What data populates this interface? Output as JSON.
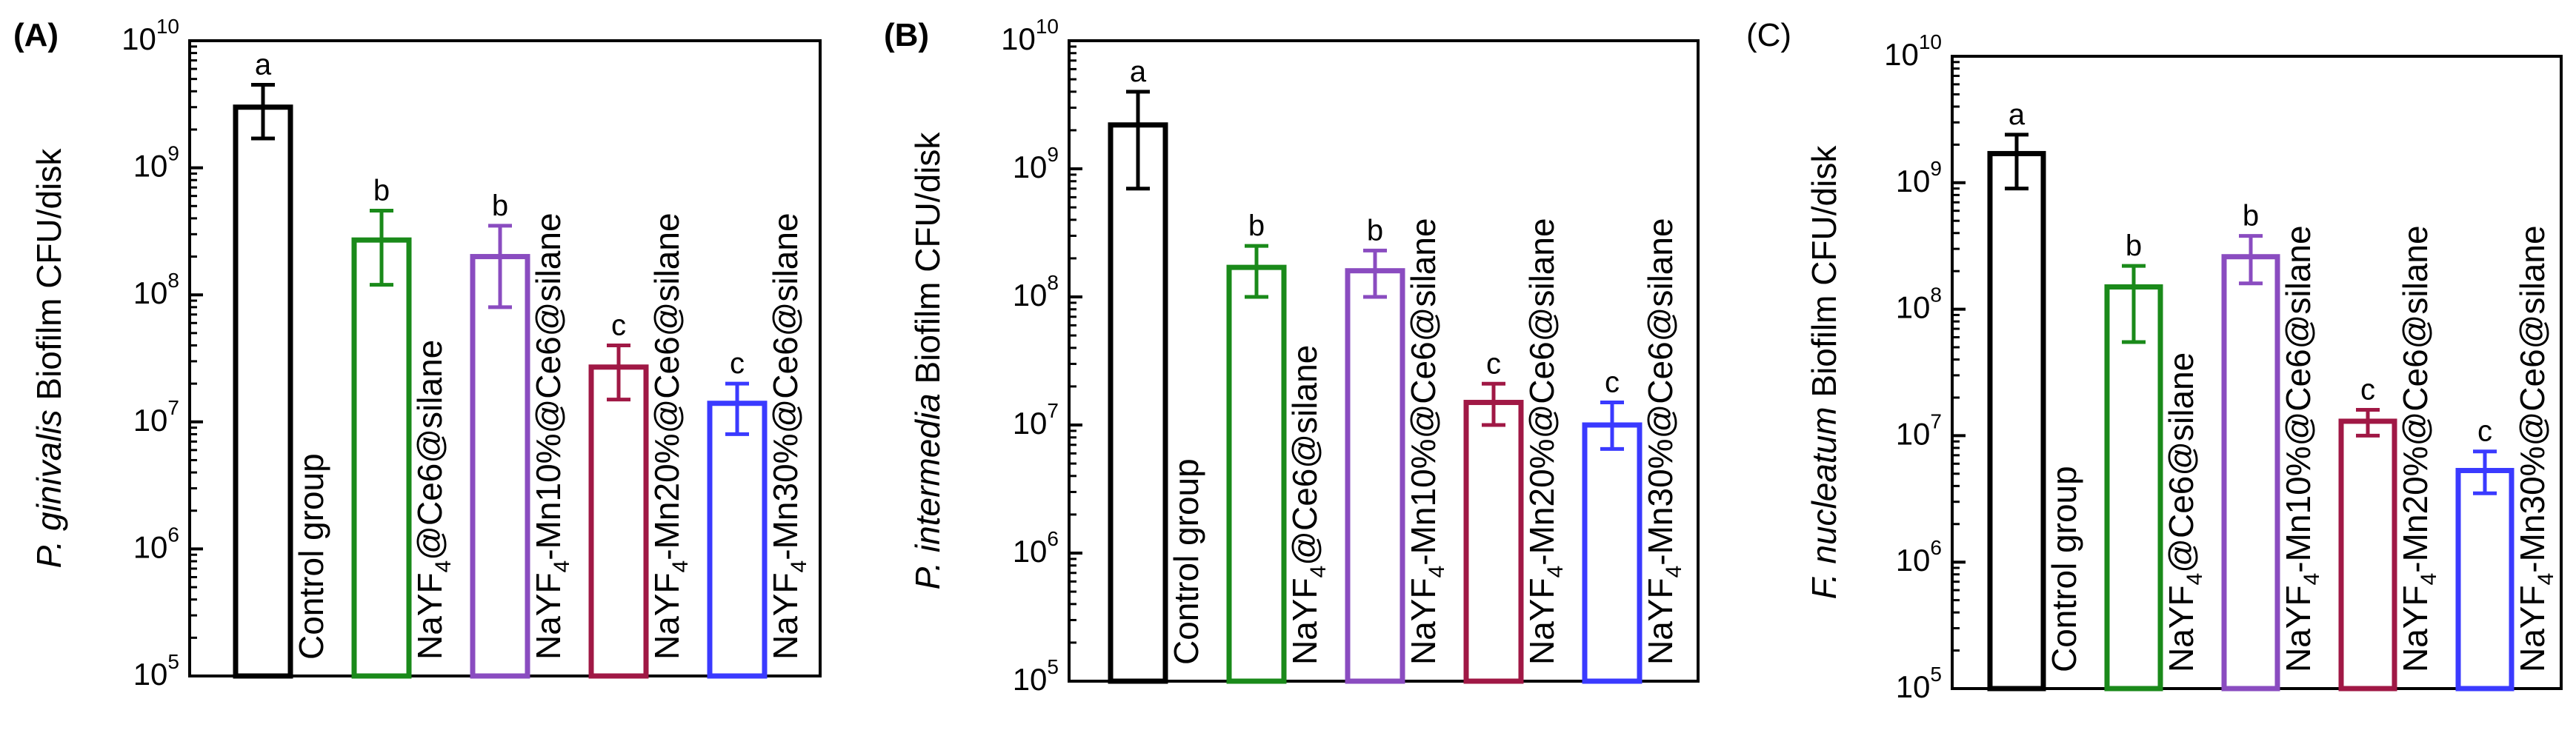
{
  "chart_data": [
    {
      "type": "bar",
      "panel_label": "(A)",
      "ylabel_italic": "P. ginivalis",
      "ylabel_rest": " Biofilm CFU/disk",
      "yscale": "log",
      "ylim": [
        100000,
        10000000000
      ],
      "yticks": [
        {
          "base": "10",
          "exp": "5"
        },
        {
          "base": "10",
          "exp": "6"
        },
        {
          "base": "10",
          "exp": "7"
        },
        {
          "base": "10",
          "exp": "8"
        },
        {
          "base": "10",
          "exp": "9"
        },
        {
          "base": "10",
          "exp": "10"
        }
      ],
      "categories": [
        {
          "pre": "Control group",
          "sub": "",
          "post": ""
        },
        {
          "pre": "NaYF",
          "sub": "4",
          "post": "@Ce6@silane"
        },
        {
          "pre": "NaYF",
          "sub": "4",
          "post": "-Mn10%@Ce6@silane"
        },
        {
          "pre": "NaYF",
          "sub": "4",
          "post": "-Mn20%@Ce6@silane"
        },
        {
          "pre": "NaYF",
          "sub": "4",
          "post": "-Mn30%@Ce6@silane"
        }
      ],
      "values": [
        3000000000,
        270000000,
        200000000,
        27000000,
        14000000
      ],
      "err_low": [
        1700000000,
        120000000,
        80000000,
        15000000,
        8000000
      ],
      "err_high": [
        4500000000,
        460000000,
        350000000,
        40000000,
        20000000
      ],
      "letters": [
        "a",
        "b",
        "b",
        "c",
        "c"
      ],
      "colors": [
        "#000000",
        "#1a8a1a",
        "#8a4cc0",
        "#a01845",
        "#3a3aff"
      ]
    },
    {
      "type": "bar",
      "panel_label": "(B)",
      "ylabel_italic": "P. intermedia",
      "ylabel_rest": " Biofilm CFU/disk",
      "yscale": "log",
      "ylim": [
        100000,
        10000000000
      ],
      "yticks": [
        {
          "base": "10",
          "exp": "5"
        },
        {
          "base": "10",
          "exp": "6"
        },
        {
          "base": "10",
          "exp": "7"
        },
        {
          "base": "10",
          "exp": "8"
        },
        {
          "base": "10",
          "exp": "9"
        },
        {
          "base": "10",
          "exp": "10"
        }
      ],
      "categories": [
        {
          "pre": "Control group",
          "sub": "",
          "post": ""
        },
        {
          "pre": "NaYF",
          "sub": "4",
          "post": "@Ce6@silane"
        },
        {
          "pre": "NaYF",
          "sub": "4",
          "post": "-Mn10%@Ce6@silane"
        },
        {
          "pre": "NaYF",
          "sub": "4",
          "post": "-Mn20%@Ce6@silane"
        },
        {
          "pre": "NaYF",
          "sub": "4",
          "post": "-Mn30%@Ce6@silane"
        }
      ],
      "values": [
        2200000000,
        170000000,
        160000000,
        15000000,
        10000000
      ],
      "err_low": [
        700000000,
        100000000,
        100000000,
        10000000,
        6500000
      ],
      "err_high": [
        4000000000,
        250000000,
        230000000,
        21000000,
        15000000
      ],
      "letters": [
        "a",
        "b",
        "b",
        "c",
        "c"
      ],
      "colors": [
        "#000000",
        "#1a8a1a",
        "#8a4cc0",
        "#a01845",
        "#3a3aff"
      ]
    },
    {
      "type": "bar",
      "panel_label": "(C)",
      "ylabel_italic": "F. nucleatum",
      "ylabel_rest": " Biofilm CFU/disk",
      "yscale": "log",
      "ylim": [
        100000,
        10000000000
      ],
      "yticks": [
        {
          "base": "10",
          "exp": "5"
        },
        {
          "base": "10",
          "exp": "6"
        },
        {
          "base": "10",
          "exp": "7"
        },
        {
          "base": "10",
          "exp": "8"
        },
        {
          "base": "10",
          "exp": "9"
        },
        {
          "base": "10",
          "exp": "10"
        }
      ],
      "categories": [
        {
          "pre": "Control group",
          "sub": "",
          "post": ""
        },
        {
          "pre": "NaYF",
          "sub": "4",
          "post": "@Ce6@silane"
        },
        {
          "pre": "NaYF",
          "sub": "4",
          "post": "-Mn10%@Ce6@silane"
        },
        {
          "pre": "NaYF",
          "sub": "4",
          "post": "-Mn20%@Ce6@silane"
        },
        {
          "pre": "NaYF",
          "sub": "4",
          "post": "-Mn30%@Ce6@silane"
        }
      ],
      "values": [
        1700000000,
        150000000,
        260000000,
        13000000,
        5300000
      ],
      "err_low": [
        900000000,
        55000000,
        160000000,
        10000000,
        3500000
      ],
      "err_high": [
        2400000000,
        220000000,
        380000000,
        16000000,
        7500000
      ],
      "letters": [
        "a",
        "b",
        "b",
        "c",
        "c"
      ],
      "colors": [
        "#000000",
        "#1a8a1a",
        "#8a4cc0",
        "#a01845",
        "#3a3aff"
      ]
    }
  ]
}
